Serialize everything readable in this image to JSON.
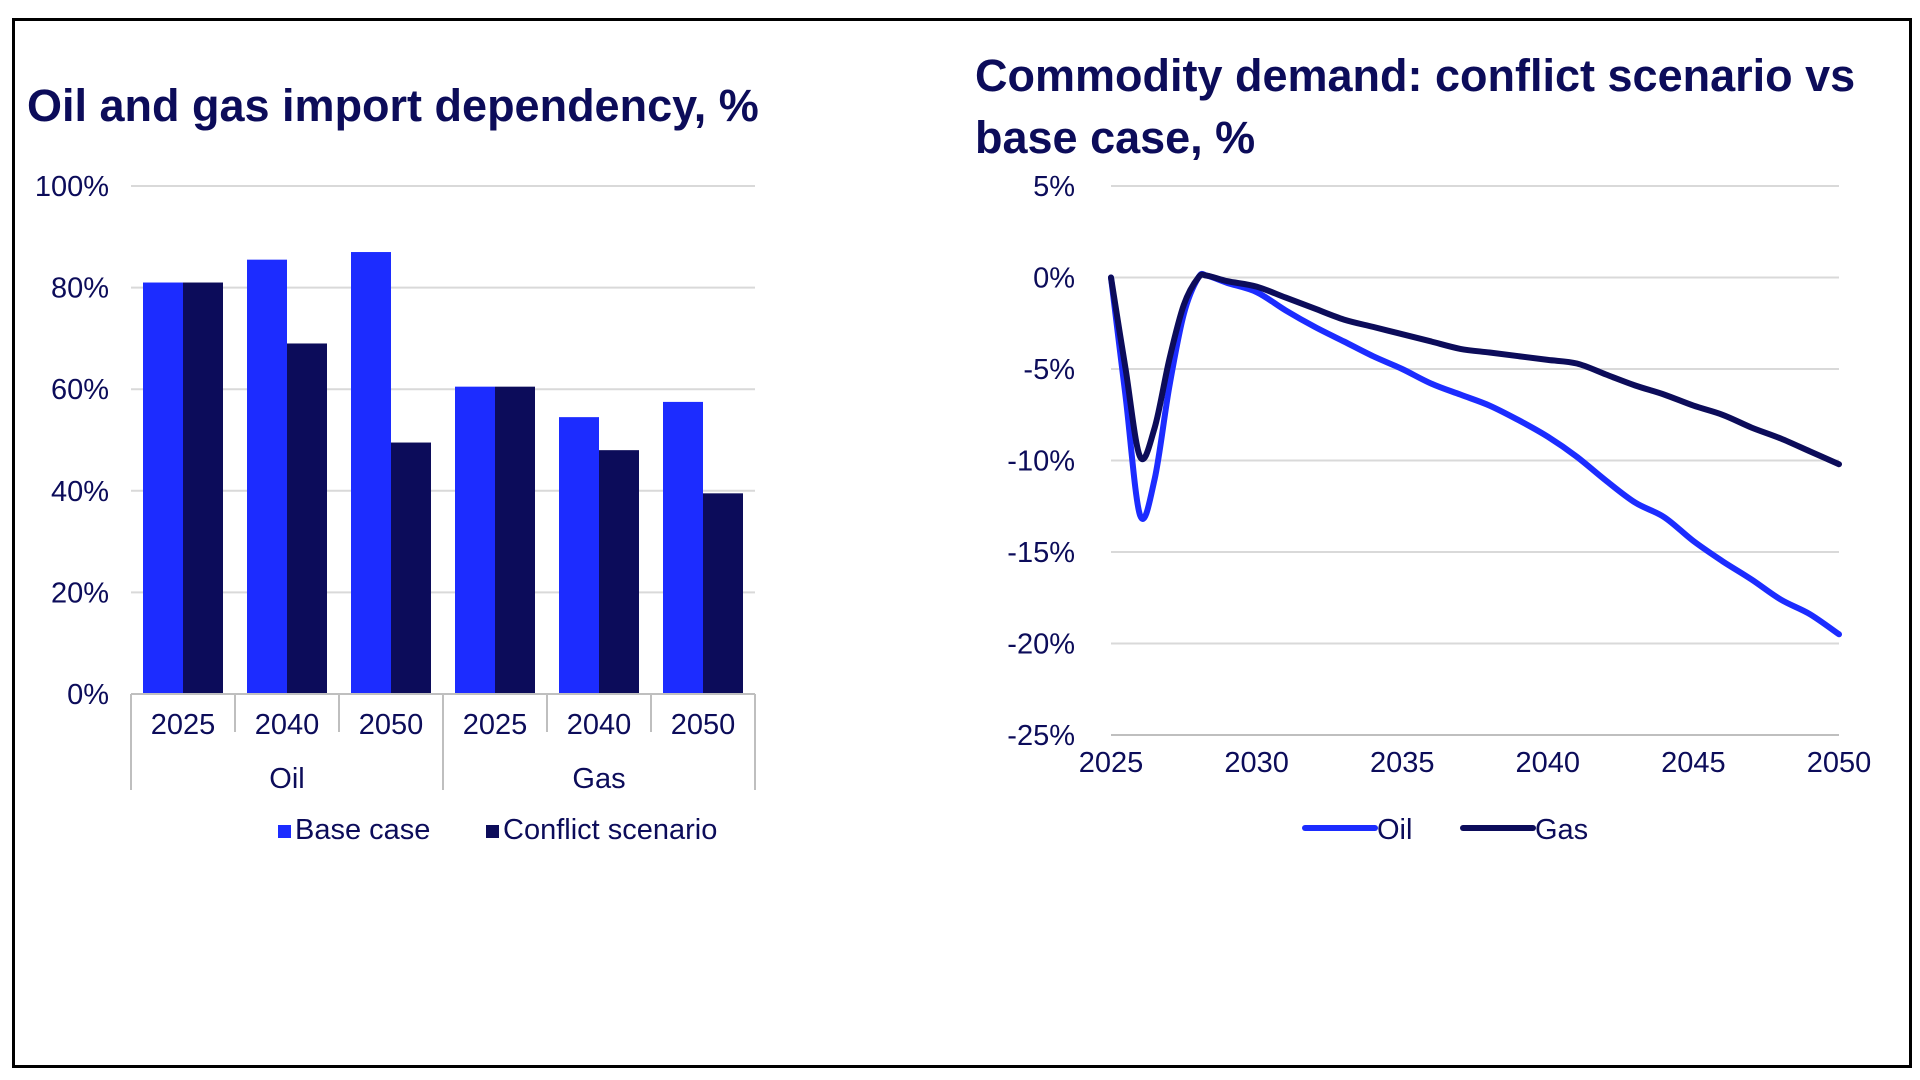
{
  "chart_data": [
    {
      "type": "bar",
      "title": "Oil and gas import dependency, %",
      "categories": [
        "2025",
        "2040",
        "2050",
        "2025",
        "2040",
        "2050"
      ],
      "groups": [
        {
          "label": "Oil",
          "categories": [
            "2025",
            "2040",
            "2050"
          ]
        },
        {
          "label": "Gas",
          "categories": [
            "2025",
            "2040",
            "2050"
          ]
        }
      ],
      "series": [
        {
          "name": "Base case",
          "color": "#1c2cff",
          "values": [
            81,
            85.5,
            87,
            60.5,
            54.5,
            57.5
          ]
        },
        {
          "name": "Conflict scenario",
          "color": "#0c0c5a",
          "values": [
            81,
            69,
            49.5,
            60.5,
            48,
            39.5
          ]
        }
      ],
      "ylim": [
        0,
        100
      ],
      "yticks": [
        0,
        20,
        40,
        60,
        80,
        100
      ],
      "ytick_labels": [
        "0%",
        "20%",
        "40%",
        "60%",
        "80%",
        "100%"
      ],
      "grid": true,
      "legend_position": "bottom"
    },
    {
      "type": "line",
      "title": "Commodity demand: conflict scenario vs base case, %",
      "xlim": [
        2025,
        2050
      ],
      "xticks": [
        2025,
        2030,
        2035,
        2040,
        2045,
        2050
      ],
      "xtick_labels": [
        "2025",
        "2030",
        "2035",
        "2040",
        "2045",
        "2050"
      ],
      "ylim": [
        -25,
        5
      ],
      "yticks": [
        5,
        0,
        -5,
        -10,
        -15,
        -20,
        -25
      ],
      "ytick_labels": [
        "5%",
        "0%",
        "-5%",
        "-10%",
        "-15%",
        "-20%",
        "-25%"
      ],
      "grid": true,
      "legend_position": "bottom",
      "series": [
        {
          "name": "Oil",
          "color": "#1c2cff",
          "x": [
            2025,
            2025.5,
            2026,
            2026.5,
            2027,
            2027.5,
            2028,
            2028.3,
            2029,
            2030,
            2031,
            2032,
            2033,
            2034,
            2035,
            2036,
            2037,
            2038,
            2039,
            2040,
            2041,
            2042,
            2043,
            2044,
            2045,
            2046,
            2047,
            2048,
            2049,
            2050
          ],
          "y": [
            0,
            -6.5,
            -13,
            -11,
            -6,
            -2,
            0,
            0.1,
            -0.3,
            -0.8,
            -1.8,
            -2.7,
            -3.5,
            -4.3,
            -5,
            -5.8,
            -6.4,
            -7,
            -7.8,
            -8.7,
            -9.8,
            -11.1,
            -12.3,
            -13.1,
            -14.4,
            -15.5,
            -16.5,
            -17.6,
            -18.4,
            -19.5
          ]
        },
        {
          "name": "Gas",
          "color": "#0c0c5a",
          "x": [
            2025,
            2025.5,
            2026,
            2026.5,
            2027,
            2027.5,
            2028,
            2028.3,
            2029,
            2030,
            2031,
            2032,
            2033,
            2034,
            2035,
            2036,
            2037,
            2038,
            2039,
            2040,
            2041,
            2042,
            2043,
            2044,
            2045,
            2046,
            2047,
            2048,
            2049,
            2050
          ],
          "y": [
            0,
            -5,
            -9.8,
            -8.2,
            -4.5,
            -1.5,
            0,
            0.1,
            -0.2,
            -0.5,
            -1.1,
            -1.7,
            -2.3,
            -2.7,
            -3.1,
            -3.5,
            -3.9,
            -4.1,
            -4.3,
            -4.5,
            -4.7,
            -5.3,
            -5.9,
            -6.4,
            -7,
            -7.5,
            -8.2,
            -8.8,
            -9.5,
            -10.2
          ]
        }
      ]
    }
  ]
}
